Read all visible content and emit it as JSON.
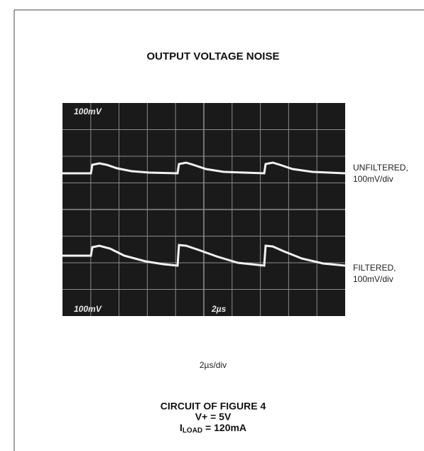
{
  "figure": {
    "title": "OUTPUT VOLTAGE NOISE",
    "screen": {
      "top_left": "100mV",
      "bottom_left": "100mV",
      "bottom_center": "2µs"
    },
    "traces": [
      {
        "label": "UNFILTERED,",
        "scale": "100mV/div"
      },
      {
        "label": "FILTERED,",
        "scale": "100mV/div"
      }
    ],
    "x_axis_label": "2µs/div",
    "caption": {
      "circuit": "CIRCUIT OF FIGURE 4",
      "supply": "V+ = 5V",
      "load": {
        "symbol": "I",
        "subscript": "LOAD",
        "value": " = 120mA"
      }
    }
  }
}
